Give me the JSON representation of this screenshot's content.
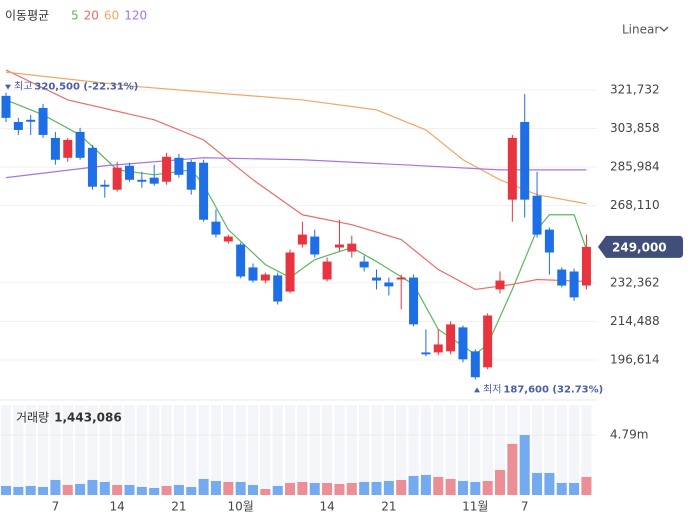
{
  "chart_data": {
    "type": "candlestick",
    "legend_title": "이동평균",
    "scale_label": "Linear",
    "categories": [
      null,
      null,
      null,
      null,
      "7",
      null,
      null,
      null,
      null,
      "14",
      null,
      null,
      null,
      null,
      "21",
      null,
      null,
      null,
      null,
      "10월",
      null,
      null,
      null,
      null,
      null,
      null,
      "14",
      null,
      null,
      null,
      null,
      "21",
      null,
      null,
      null,
      null,
      null,
      null,
      "11월",
      null,
      null,
      null,
      "7",
      null,
      null,
      null,
      null,
      null
    ],
    "open": [
      319000,
      306900,
      307900,
      313400,
      299500,
      290300,
      302300,
      294900,
      277800,
      275500,
      286600,
      280100,
      281100,
      279200,
      290300,
      288400,
      288000,
      260700,
      251500,
      250100,
      239500,
      233400,
      235800,
      228300,
      250100,
      253800,
      233900,
      248700,
      246800,
      242200,
      234800,
      232500,
      233900,
      234800,
      200100,
      200100,
      200600,
      211700,
      200600,
      193200,
      229300,
      270900,
      306900,
      272700,
      257000,
      238500,
      237600,
      231100
    ],
    "high": [
      320500,
      308800,
      310200,
      315300,
      302300,
      299500,
      304200,
      296300,
      280100,
      288400,
      288000,
      283800,
      287100,
      292600,
      292100,
      289400,
      289400,
      266300,
      254700,
      251000,
      241300,
      237100,
      237100,
      247800,
      260700,
      257000,
      244100,
      261600,
      254200,
      245000,
      238500,
      234800,
      236200,
      236200,
      210800,
      210800,
      214500,
      212600,
      201500,
      218200,
      237600,
      300900,
      319900,
      283800,
      258000,
      239500,
      238900,
      254700
    ],
    "low": [
      306900,
      300900,
      300900,
      299500,
      287100,
      288400,
      289400,
      275500,
      271800,
      274600,
      279200,
      276400,
      277350,
      277800,
      281100,
      273200,
      260700,
      253300,
      250500,
      234400,
      232500,
      232100,
      222300,
      227400,
      248700,
      244100,
      233000,
      246800,
      244100,
      237600,
      229300,
      226500,
      220000,
      212200,
      198300,
      198800,
      199200,
      195500,
      187600,
      192300,
      227400,
      260700,
      262600,
      253300,
      236200,
      230200,
      224000,
      229300
    ],
    "close": [
      308800,
      303200,
      307000,
      300900,
      289400,
      298600,
      290300,
      276900,
      276900,
      285700,
      280100,
      279200,
      278300,
      290760,
      282400,
      275500,
      261600,
      254700,
      253800,
      235300,
      233400,
      236200,
      223700,
      246400,
      254700,
      245500,
      242200,
      250100,
      250500,
      239500,
      233400,
      230700,
      234800,
      213100,
      199200,
      203800,
      213100,
      196900,
      188600,
      217200,
      233400,
      299500,
      270900,
      254700,
      246400,
      231100,
      225600,
      249000
    ],
    "up_color": "#e8343f",
    "down_color": "#1e6ee6",
    "ylim": [
      185000,
      333300
    ],
    "yticks": [
      {
        "value": 321732,
        "label": "321,732"
      },
      {
        "value": 303858,
        "label": "303,858"
      },
      {
        "value": 285984,
        "label": "285,984"
      },
      {
        "value": 268110,
        "label": "268,110"
      },
      {
        "value": 232362,
        "label": "232,362"
      },
      {
        "value": 214488,
        "label": "214,488"
      },
      {
        "value": 196614,
        "label": "196,614"
      }
    ],
    "grid": true,
    "moving_averages": [
      {
        "name": "5",
        "color": "#5cb85c",
        "x": [
          0,
          3,
          6,
          9,
          12,
          15,
          16,
          18,
          21,
          23,
          25,
          28,
          30,
          33,
          35,
          38,
          39,
          41,
          43,
          44,
          46,
          47
        ],
        "values": [
          317100,
          310200,
          300900,
          284700,
          282400,
          284700,
          277800,
          257000,
          240800,
          234800,
          243100,
          248700,
          242200,
          231600,
          210800,
          199200,
          203800,
          229300,
          257000,
          263900,
          263900,
          247800
        ]
      },
      {
        "name": "20",
        "color": "#ec6b66",
        "x": [
          0,
          5,
          12,
          16,
          20,
          24,
          28,
          32,
          35,
          38,
          41,
          43,
          47
        ],
        "values": [
          330980,
          317100,
          307900,
          298600,
          280100,
          263900,
          259300,
          252400,
          238500,
          229300,
          231600,
          233900,
          233000
        ]
      },
      {
        "name": "60",
        "color": "#f2a765",
        "x": [
          0,
          10,
          24,
          30,
          34,
          37,
          40,
          43,
          47
        ],
        "values": [
          330000,
          323600,
          317100,
          312500,
          303200,
          289400,
          280100,
          273200,
          269000
        ]
      },
      {
        "name": "120",
        "color": "#a874e4",
        "x": [
          0,
          8,
          16,
          24,
          32,
          40,
          47
        ],
        "values": [
          281100,
          286600,
          290300,
          289400,
          287100,
          284700,
          284700
        ]
      }
    ],
    "high_annotation": {
      "label": "최고",
      "value": 320500,
      "value_label": "320,500 (-22.31%)"
    },
    "low_annotation": {
      "label": "최저",
      "value": 187600,
      "value_label": "187,600 (32.73%)"
    },
    "current_price": {
      "value": 249000,
      "label": "249,000"
    },
    "volume": {
      "title": "거래량",
      "last_label": "1,443,086",
      "ylim": [
        0,
        7185000
      ],
      "yticks": [
        {
          "value": 4790000,
          "label": "4.79m"
        }
      ],
      "up_color": "#ec8e96",
      "down_color": "#74aaf0",
      "values": [
        720000,
        640000,
        720000,
        640000,
        1200000,
        800000,
        880000,
        1200000,
        1040000,
        800000,
        800000,
        640000,
        560000,
        720000,
        800000,
        640000,
        1280000,
        1120000,
        1040000,
        1040000,
        800000,
        480000,
        720000,
        960000,
        1040000,
        960000,
        960000,
        880000,
        960000,
        1040000,
        1040000,
        1120000,
        1200000,
        1520000,
        1600000,
        1440000,
        1280000,
        1120000,
        1040000,
        1120000,
        2000000,
        4080000,
        4790000,
        1760000,
        1760000,
        960000,
        960000,
        1443086
      ]
    }
  }
}
